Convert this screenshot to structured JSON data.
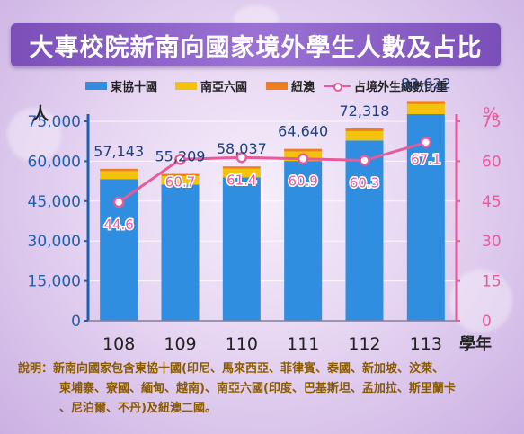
{
  "title": "大專校院新南向國家境外學生人數及占比",
  "legend": {
    "s1": "東協十國",
    "s2": "南亞六國",
    "s3": "紐澳",
    "line": "占境外生總數比重"
  },
  "colors": {
    "asean": "#2f8ee0",
    "southasia": "#f2c20c",
    "anz": "#f07d1f",
    "line": "#e85a9a",
    "leftAxis": "#1f5fb0",
    "rightAxis": "#e85a9a",
    "note": "#8a5a00"
  },
  "axis": {
    "left_unit": "人",
    "right_unit": "%",
    "x_unit": "學年"
  },
  "note": {
    "label": "說明：",
    "line1": "新南向國家包含東協十國(印尼、馬來西亞、菲律賓、泰國、新加坡、汶萊、",
    "line2": "柬埔寨、寮國、緬甸、越南)、南亞六國(印度、巴基斯坦、孟加拉、斯里蘭卡",
    "line3": "、尼泊爾、不丹)及紐澳二國。"
  },
  "chart_data": {
    "type": "bar",
    "stacked": true,
    "categories": [
      "108",
      "109",
      "110",
      "111",
      "112",
      "113"
    ],
    "totals": [
      57143,
      55209,
      58037,
      64640,
      72318,
      82622
    ],
    "total_labels": [
      "57,143",
      "55,209",
      "58,037",
      "64,640",
      "72,318",
      "82,622"
    ],
    "series": [
      {
        "name": "東協十國",
        "values": [
          53300,
          51200,
          53900,
          60100,
          67800,
          77700
        ]
      },
      {
        "name": "南亞六國",
        "values": [
          3000,
          3200,
          3300,
          3600,
          3500,
          3800
        ]
      },
      {
        "name": "紐澳",
        "values": [
          843,
          809,
          837,
          940,
          1018,
          1122
        ]
      }
    ],
    "line_series": {
      "name": "占境外生總數比重",
      "values": [
        44.6,
        60.7,
        61.4,
        60.9,
        60.3,
        67.1
      ],
      "labels": [
        "44.6",
        "60.7",
        "61.4",
        "60.9",
        "60.3",
        "67.1"
      ]
    },
    "y_left": {
      "min": 0,
      "max": 75000,
      "ticks": [
        0,
        15000,
        30000,
        45000,
        60000,
        75000
      ],
      "tick_labels": [
        "0",
        "15,000",
        "30,000",
        "45,000",
        "60,000",
        "75,000"
      ]
    },
    "y_right": {
      "min": 0,
      "max": 75,
      "ticks": [
        0,
        15,
        30,
        45,
        60,
        75
      ],
      "tick_labels": [
        "0",
        "15",
        "30",
        "45",
        "60",
        "75"
      ]
    },
    "legend_position": "top"
  }
}
